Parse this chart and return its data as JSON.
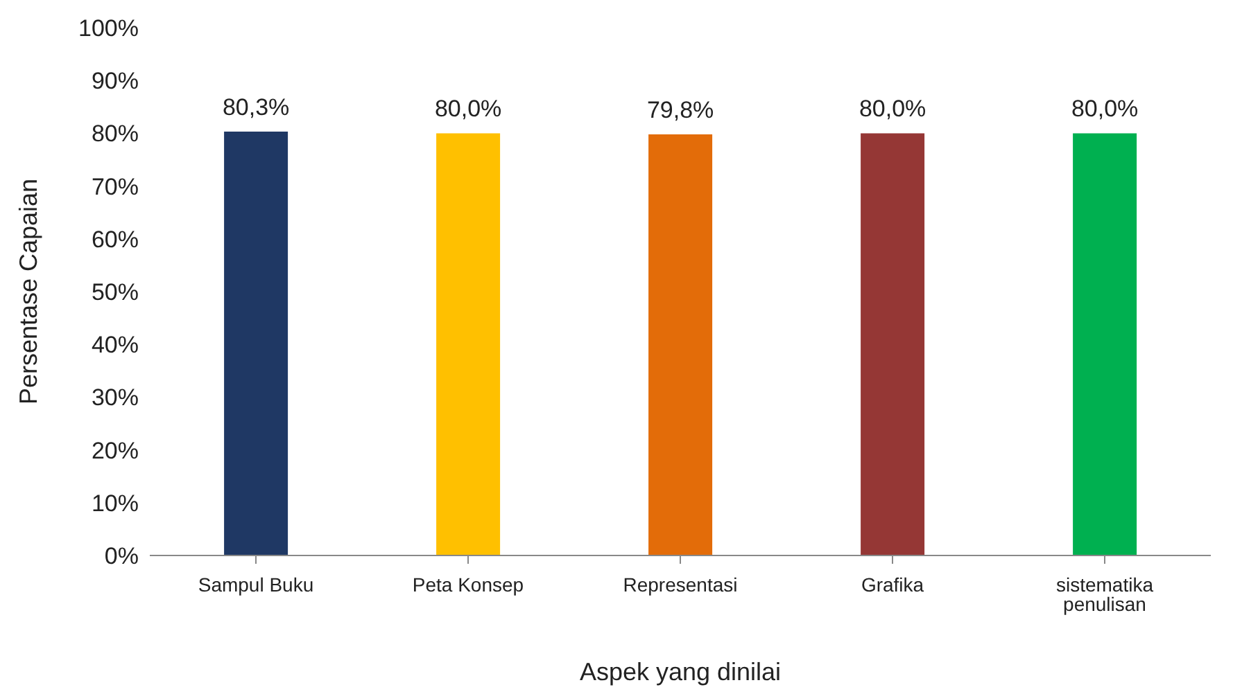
{
  "chart_data": {
    "type": "bar",
    "xlabel": "Aspek yang dinilai",
    "ylabel": "Persentase Capaian",
    "categories": [
      "Sampul Buku",
      "Peta Konsep",
      "Representasi",
      "Grafika",
      "sistematika penulisan"
    ],
    "values": [
      80.3,
      80.0,
      79.8,
      80.0,
      80.0
    ],
    "colors": [
      "#1f3864",
      "#ffc000",
      "#e36c09",
      "#953735",
      "#00b050"
    ],
    "value_labels": [
      "80,3%",
      "80,0%",
      "79,8%",
      "80,0%",
      "80,0%"
    ],
    "ylim": [
      0,
      100
    ],
    "yticks": [
      {
        "value": 0,
        "label": "0%"
      },
      {
        "value": 10,
        "label": "10%"
      },
      {
        "value": 20,
        "label": "20%"
      },
      {
        "value": 30,
        "label": "30%"
      },
      {
        "value": 40,
        "label": "40%"
      },
      {
        "value": 50,
        "label": "50%"
      },
      {
        "value": 60,
        "label": "60%"
      },
      {
        "value": 70,
        "label": "70%"
      },
      {
        "value": 80,
        "label": "80%"
      },
      {
        "value": 90,
        "label": "90%"
      },
      {
        "value": 100,
        "label": "100%"
      }
    ],
    "grid": false,
    "legend": false
  }
}
